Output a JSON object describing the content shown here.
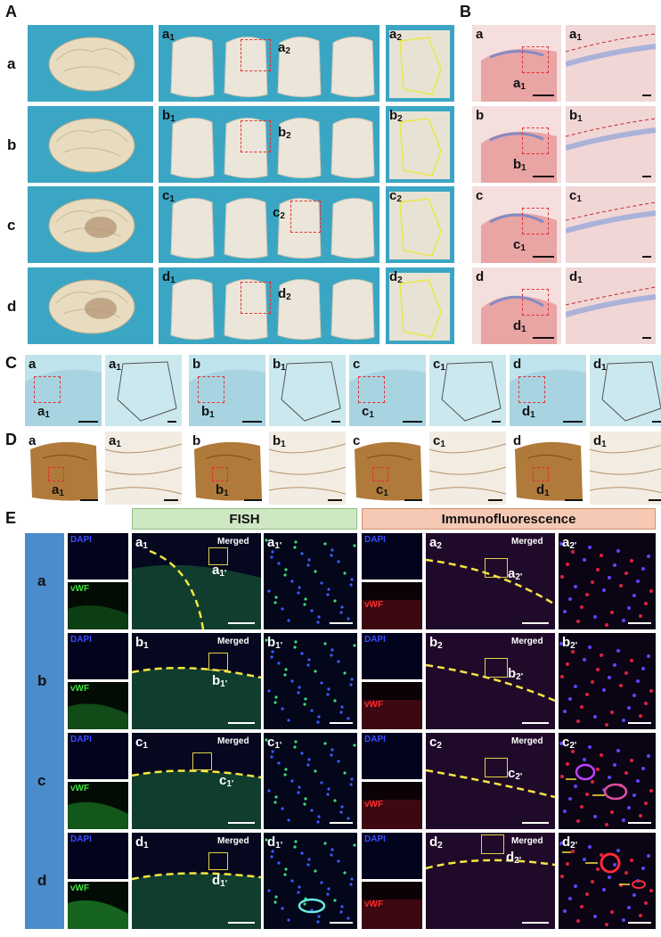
{
  "panels": {
    "A": {
      "label": "A",
      "rows": [
        "a",
        "b",
        "c",
        "d"
      ],
      "slice_labels": [
        {
          "s1": "a",
          "s1sub": "1",
          "s2": "a",
          "s2sub": "2",
          "z": "a",
          "zsub": "2"
        },
        {
          "s1": "b",
          "s1sub": "1",
          "s2": "b",
          "s2sub": "2",
          "z": "b",
          "zsub": "2"
        },
        {
          "s1": "c",
          "s1sub": "1",
          "s2": "c",
          "s2sub": "2",
          "z": "c",
          "zsub": "2"
        },
        {
          "s1": "d",
          "s1sub": "1",
          "s2": "d",
          "s2sub": "2",
          "z": "d",
          "zsub": "2"
        }
      ]
    },
    "B": {
      "label": "B",
      "rows": [
        {
          "m": "a",
          "z": "a",
          "zsub": "1"
        },
        {
          "m": "b",
          "z": "b",
          "zsub": "1"
        },
        {
          "m": "c",
          "z": "c",
          "zsub": "1"
        },
        {
          "m": "d",
          "z": "d",
          "zsub": "1"
        }
      ]
    },
    "C": {
      "label": "C",
      "items": [
        {
          "m": "a",
          "z": "a",
          "zsub": "1"
        },
        {
          "m": "b",
          "z": "b",
          "zsub": "1"
        },
        {
          "m": "c",
          "z": "c",
          "zsub": "1"
        },
        {
          "m": "d",
          "z": "d",
          "zsub": "1"
        }
      ]
    },
    "D": {
      "label": "D",
      "items": [
        {
          "m": "a",
          "z": "a",
          "zsub": "1"
        },
        {
          "m": "b",
          "z": "b",
          "zsub": "1"
        },
        {
          "m": "c",
          "z": "c",
          "zsub": "1"
        },
        {
          "m": "d",
          "z": "d",
          "zsub": "1"
        }
      ]
    },
    "E": {
      "label": "E",
      "header_fish": "FISH",
      "header_if": "Immunofluorescence",
      "dapi": "DAPI",
      "vwf": "vWF",
      "merged": "Merged",
      "rows": [
        {
          "row": "a",
          "f": "a",
          "fsub": "1",
          "fz": "a",
          "fzsub": "1'",
          "i": "a",
          "isub": "2",
          "iz": "a",
          "izsub": "2'"
        },
        {
          "row": "b",
          "f": "b",
          "fsub": "1",
          "fz": "b",
          "fzsub": "1'",
          "i": "b",
          "isub": "2",
          "iz": "b",
          "izsub": "2'"
        },
        {
          "row": "c",
          "f": "c",
          "fsub": "1",
          "fz": "c",
          "fzsub": "1'",
          "i": "c",
          "isub": "2",
          "iz": "c",
          "izsub": "2'"
        },
        {
          "row": "d",
          "f": "d",
          "fsub": "1",
          "fz": "d",
          "fzsub": "1'",
          "i": "d",
          "isub": "2",
          "iz": "d",
          "izsub": "2'"
        }
      ]
    }
  },
  "colors": {
    "blue_bg": "#3aa6c4",
    "he_bg": "#f4dede",
    "lfb_bg": "#bfe3ec",
    "silver_bg": "#f2ece2",
    "fish_header": "#cfe8c4",
    "if_header": "#f6c9b4",
    "row_bar": "#4a8ccc"
  }
}
